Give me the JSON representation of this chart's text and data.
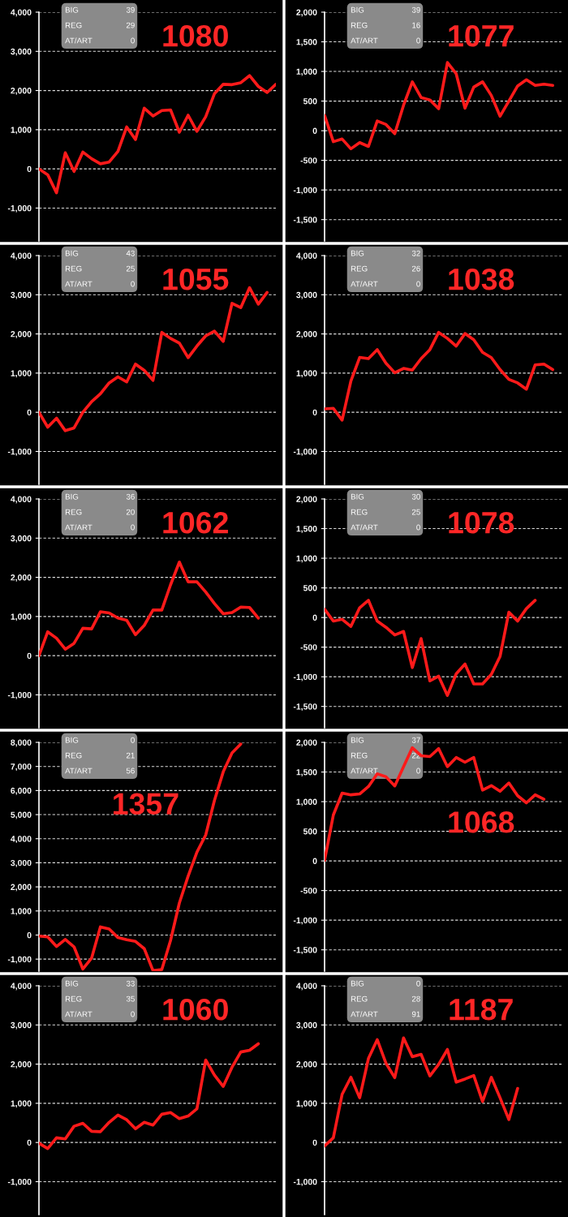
{
  "chart_data": [
    {
      "type": "line",
      "title": "1080",
      "annotations": [
        "BIG",
        "39",
        "REG",
        "29",
        "AT/ART",
        "0"
      ],
      "categories": [
        null,
        null,
        null,
        null,
        null,
        null,
        null,
        null,
        null,
        null,
        null,
        null,
        null,
        null,
        null,
        null,
        null,
        null,
        null,
        null,
        null,
        null,
        null,
        null,
        null,
        null,
        null,
        null
      ],
      "ylim": [
        -1840,
        4000
      ],
      "yticks": [
        {
          "value": -1000,
          "label": "-1,000"
        },
        0,
        {
          "value": 1000,
          "label": "1,000"
        },
        {
          "value": 2000,
          "label": "2,000"
        },
        {
          "value": 3000,
          "label": "3,000"
        },
        {
          "value": 4000,
          "label": "4,000"
        }
      ],
      "grid": "y",
      "tick_labels": "y",
      "series": [
        {
          "color": "#ff1a1a",
          "values": [
            0,
            -150,
            -610,
            410,
            -65,
            430,
            260,
            130,
            175,
            445,
            1070,
            750,
            1550,
            1350,
            1490,
            1505,
            935,
            1370,
            960,
            1330,
            1920,
            2160,
            2150,
            2200,
            2380,
            2105,
            1950,
            2160
          ]
        }
      ]
    },
    {
      "type": "line",
      "title": "1077",
      "annotations": [
        "BIG",
        "39",
        "REG",
        "16",
        "AT/ART",
        "0"
      ],
      "categories": [
        null,
        null,
        null,
        null,
        null,
        null,
        null,
        null,
        null,
        null,
        null,
        null,
        null,
        null,
        null,
        null,
        null,
        null,
        null,
        null,
        null,
        null,
        null,
        null,
        null,
        null,
        null,
        null
      ],
      "ylim": [
        -1860,
        2000
      ],
      "yticks": [
        {
          "value": -1500,
          "label": "-1,500"
        },
        {
          "value": -1000,
          "label": "-1,000"
        },
        {
          "value": -500,
          "label": "-500"
        },
        0,
        500,
        {
          "value": 1000,
          "label": "1,000"
        },
        {
          "value": 1500,
          "label": "1,500"
        },
        {
          "value": 2000,
          "label": "2,000"
        }
      ],
      "grid": "y",
      "tick_labels": "y",
      "series": [
        {
          "color": "#ff1a1a",
          "values": [
            257,
            -185,
            -140,
            -305,
            -200,
            -265,
            165,
            105,
            -50,
            430,
            825,
            560,
            520,
            370,
            1150,
            960,
            380,
            735,
            825,
            595,
            245,
            500,
            755,
            860,
            765,
            785,
            765,
            null
          ]
        }
      ]
    },
    {
      "type": "line",
      "title": "1055",
      "annotations": [
        "BIG",
        "43",
        "REG",
        "25",
        "AT/ART",
        "0"
      ],
      "categories": [
        null,
        null,
        null,
        null,
        null,
        null,
        null,
        null,
        null,
        null,
        null,
        null,
        null,
        null,
        null,
        null,
        null,
        null,
        null,
        null,
        null,
        null,
        null,
        null,
        null,
        null,
        null,
        null
      ],
      "ylim": [
        -1840,
        4000
      ],
      "yticks": [
        {
          "value": -1000,
          "label": "-1,000"
        },
        0,
        {
          "value": 1000,
          "label": "1,000"
        },
        {
          "value": 2000,
          "label": "2,000"
        },
        {
          "value": 3000,
          "label": "3,000"
        },
        {
          "value": 4000,
          "label": "4,000"
        }
      ],
      "grid": "y",
      "tick_labels": "y",
      "series": [
        {
          "color": "#ff1a1a",
          "values": [
            0,
            -380,
            -150,
            -470,
            -400,
            0,
            270,
            470,
            750,
            905,
            775,
            1230,
            1070,
            815,
            2040,
            1885,
            1765,
            1395,
            1690,
            1950,
            2070,
            1810,
            2780,
            2670,
            3180,
            2760,
            3060,
            null
          ]
        }
      ]
    },
    {
      "type": "line",
      "title": "1038",
      "annotations": [
        "BIG",
        "32",
        "REG",
        "26",
        "AT/ART",
        "0"
      ],
      "categories": [
        null,
        null,
        null,
        null,
        null,
        null,
        null,
        null,
        null,
        null,
        null,
        null,
        null,
        null,
        null,
        null,
        null,
        null,
        null,
        null,
        null,
        null,
        null,
        null,
        null,
        null,
        null,
        null
      ],
      "ylim": [
        -1840,
        4000
      ],
      "yticks": [
        {
          "value": -1000,
          "label": "-1,000"
        },
        0,
        {
          "value": 1000,
          "label": "1,000"
        },
        {
          "value": 2000,
          "label": "2,000"
        },
        {
          "value": 3000,
          "label": "3,000"
        },
        {
          "value": 4000,
          "label": "4,000"
        }
      ],
      "grid": "y",
      "tick_labels": "y",
      "series": [
        {
          "color": "#ff1a1a",
          "values": [
            85,
            100,
            -200,
            800,
            1400,
            1370,
            1600,
            1250,
            1010,
            1120,
            1075,
            1370,
            1600,
            2040,
            1885,
            1690,
            2010,
            1850,
            1530,
            1395,
            1090,
            840,
            750,
            590,
            1210,
            1230,
            1090,
            null
          ]
        }
      ]
    },
    {
      "type": "line",
      "title": "1062",
      "annotations": [
        "BIG",
        "36",
        "REG",
        "20",
        "AT/ART",
        "0"
      ],
      "categories": [
        null,
        null,
        null,
        null,
        null,
        null,
        null,
        null,
        null,
        null,
        null,
        null,
        null,
        null,
        null,
        null,
        null,
        null,
        null,
        null,
        null,
        null,
        null,
        null,
        null,
        null,
        null,
        null
      ],
      "ylim": [
        -1840,
        4000
      ],
      "yticks": [
        {
          "value": -1000,
          "label": "-1,000"
        },
        0,
        {
          "value": 1000,
          "label": "1,000"
        },
        {
          "value": 2000,
          "label": "2,000"
        },
        {
          "value": 3000,
          "label": "3,000"
        },
        {
          "value": 4000,
          "label": "4,000"
        }
      ],
      "grid": "y",
      "tick_labels": "y",
      "series": [
        {
          "color": "#ff1a1a",
          "values": [
            0,
            610,
            445,
            165,
            315,
            700,
            685,
            1120,
            1090,
            960,
            905,
            535,
            775,
            1165,
            1165,
            1810,
            2390,
            1885,
            1885,
            1625,
            1330,
            1070,
            1100,
            1240,
            1230,
            960,
            null,
            null
          ]
        }
      ]
    },
    {
      "type": "line",
      "title": "1078",
      "annotations": [
        "BIG",
        "30",
        "REG",
        "25",
        "AT/ART",
        "0"
      ],
      "categories": [
        null,
        null,
        null,
        null,
        null,
        null,
        null,
        null,
        null,
        null,
        null,
        null,
        null,
        null,
        null,
        null,
        null,
        null,
        null,
        null,
        null,
        null,
        null,
        null,
        null,
        null,
        null,
        null
      ],
      "ylim": [
        -1860,
        2000
      ],
      "yticks": [
        {
          "value": -1500,
          "label": "-1,500"
        },
        {
          "value": -1000,
          "label": "-1,000"
        },
        {
          "value": -500,
          "label": "-500"
        },
        0,
        500,
        {
          "value": 1000,
          "label": "1,000"
        },
        {
          "value": 1500,
          "label": "1,500"
        },
        {
          "value": 2000,
          "label": "2,000"
        }
      ],
      "grid": "y",
      "tick_labels": "y",
      "series": [
        {
          "color": "#ff1a1a",
          "values": [
            140,
            -60,
            -30,
            -150,
            165,
            290,
            -60,
            -165,
            -295,
            -235,
            -845,
            -355,
            -1070,
            -990,
            -1315,
            -950,
            -785,
            -1120,
            -1120,
            -960,
            -655,
            90,
            -60,
            150,
            290,
            null,
            null,
            null
          ]
        }
      ]
    },
    {
      "type": "line",
      "title": "1357",
      "annotations": [
        "BIG",
        "0",
        "REG",
        "21",
        "AT/ART",
        "56"
      ],
      "categories": [
        null,
        null,
        null,
        null,
        null,
        null,
        null,
        null,
        null,
        null,
        null,
        null,
        null,
        null,
        null,
        null,
        null,
        null,
        null,
        null,
        null,
        null,
        null,
        null,
        null,
        null,
        null,
        null
      ],
      "ylim": [
        -1500,
        8000
      ],
      "yticks": [
        {
          "value": -1000,
          "label": "-1,000"
        },
        0,
        {
          "value": 1000,
          "label": "1,000"
        },
        {
          "value": 2000,
          "label": "2,000"
        },
        {
          "value": 3000,
          "label": "3,000"
        },
        {
          "value": 4000,
          "label": "4,000"
        },
        {
          "value": 5000,
          "label": "5,000"
        },
        {
          "value": 6000,
          "label": "6,000"
        },
        {
          "value": 7000,
          "label": "7,000"
        },
        {
          "value": 8000,
          "label": "8,000"
        }
      ],
      "grid": "y",
      "tick_labels": "y",
      "series": [
        {
          "color": "#ff1a1a",
          "values": [
            -45,
            -75,
            -475,
            -180,
            -490,
            -1410,
            -960,
            340,
            250,
            -105,
            -195,
            -265,
            -565,
            -1480,
            -1435,
            -220,
            1330,
            2445,
            3440,
            4150,
            5590,
            6775,
            7560,
            7930,
            null,
            null,
            null,
            null
          ]
        }
      ]
    },
    {
      "type": "line",
      "title": "1068",
      "annotations": [
        "BIG",
        "37",
        "REG",
        "22",
        "AT/ART",
        "0"
      ],
      "categories": [
        null,
        null,
        null,
        null,
        null,
        null,
        null,
        null,
        null,
        null,
        null,
        null,
        null,
        null,
        null,
        null,
        null,
        null,
        null,
        null,
        null,
        null,
        null,
        null,
        null,
        null,
        null,
        null
      ],
      "ylim": [
        -1860,
        2000
      ],
      "yticks": [
        {
          "value": -1500,
          "label": "-1,500"
        },
        {
          "value": -1000,
          "label": "-1,000"
        },
        {
          "value": -500,
          "label": "-500"
        },
        0,
        500,
        {
          "value": 1000,
          "label": "1,000"
        },
        {
          "value": 1500,
          "label": "1,500"
        },
        {
          "value": 2000,
          "label": "2,000"
        }
      ],
      "grid": "y",
      "tick_labels": "y",
      "series": [
        {
          "color": "#ff1a1a",
          "values": [
            10,
            775,
            1145,
            1115,
            1130,
            1255,
            1470,
            1420,
            1265,
            1590,
            1910,
            1775,
            1760,
            1895,
            1590,
            1745,
            1665,
            1745,
            1195,
            1270,
            1175,
            1315,
            1100,
            980,
            1115,
            1040,
            null,
            null
          ]
        }
      ]
    },
    {
      "type": "line",
      "title": "1060",
      "annotations": [
        "BIG",
        "33",
        "REG",
        "35",
        "AT/ART",
        "0"
      ],
      "categories": [
        null,
        null,
        null,
        null,
        null,
        null,
        null,
        null,
        null,
        null,
        null,
        null,
        null,
        null,
        null,
        null,
        null,
        null,
        null,
        null,
        null,
        null,
        null,
        null,
        null,
        null,
        null,
        null
      ],
      "ylim": [
        -1840,
        4000
      ],
      "yticks": [
        {
          "value": -1000,
          "label": "-1,000"
        },
        0,
        {
          "value": 1000,
          "label": "1,000"
        },
        {
          "value": 2000,
          "label": "2,000"
        },
        {
          "value": 3000,
          "label": "3,000"
        },
        {
          "value": 4000,
          "label": "4,000"
        }
      ],
      "grid": "y",
      "tick_labels": "y",
      "series": [
        {
          "color": "#ff1a1a",
          "values": [
            -20,
            -155,
            120,
            90,
            415,
            490,
            285,
            275,
            515,
            700,
            580,
            350,
            515,
            445,
            720,
            765,
            610,
            675,
            860,
            2105,
            1720,
            1430,
            1920,
            2310,
            2355,
            2520,
            null,
            null
          ]
        }
      ]
    },
    {
      "type": "line",
      "title": "1187",
      "annotations": [
        "BIG",
        "0",
        "REG",
        "28",
        "AT/ART",
        "91"
      ],
      "categories": [
        null,
        null,
        null,
        null,
        null,
        null,
        null,
        null,
        null,
        null,
        null,
        null,
        null,
        null,
        null,
        null,
        null,
        null,
        null,
        null,
        null,
        null,
        null,
        null,
        null,
        null,
        null,
        null
      ],
      "ylim": [
        -1840,
        4000
      ],
      "yticks": [
        {
          "value": -1000,
          "label": "-1,000"
        },
        0,
        {
          "value": 1000,
          "label": "1,000"
        },
        {
          "value": 2000,
          "label": "2,000"
        },
        {
          "value": 3000,
          "label": "3,000"
        },
        {
          "value": 4000,
          "label": "4,000"
        }
      ],
      "grid": "y",
      "tick_labels": "y",
      "series": [
        {
          "color": "#ff1a1a",
          "values": [
            -90,
            120,
            1230,
            1665,
            1140,
            2145,
            2625,
            2020,
            1655,
            2670,
            2190,
            2250,
            1700,
            1995,
            2375,
            1540,
            1620,
            1710,
            1045,
            1665,
            1140,
            585,
            1380,
            null,
            null,
            null,
            null,
            null
          ]
        }
      ]
    }
  ]
}
